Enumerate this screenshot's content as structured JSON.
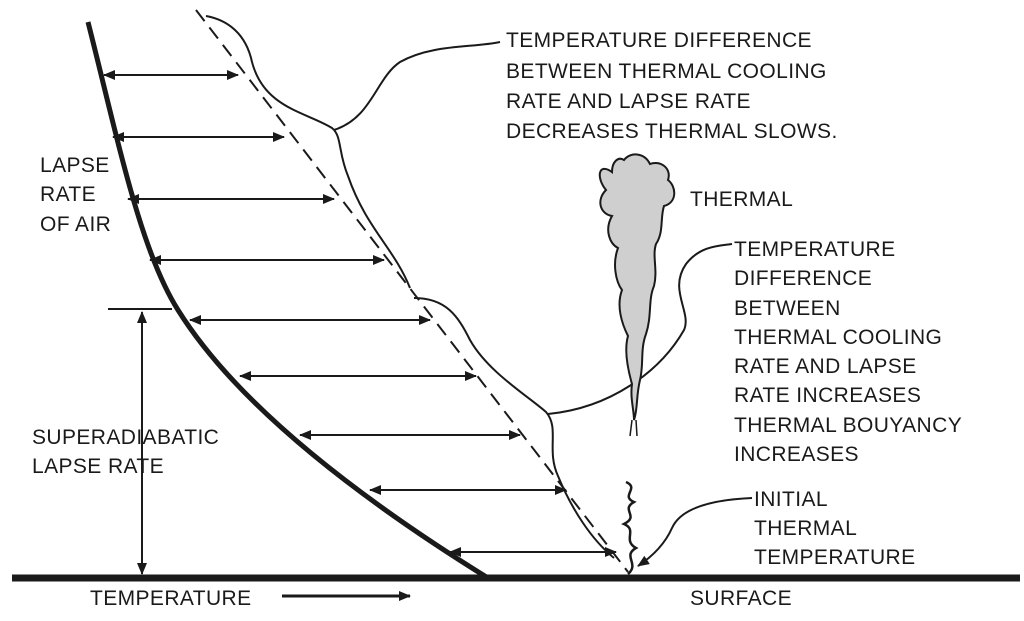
{
  "labels": {
    "top_note": [
      "TEMPERATURE DIFFERENCE",
      "BETWEEN THERMAL COOLING",
      "RATE AND LAPSE RATE",
      "DECREASES THERMAL SLOWS."
    ],
    "thermal": "THERMAL",
    "lapse_rate_of_air": [
      "LAPSE",
      "RATE",
      "OF AIR"
    ],
    "middle_note": [
      "TEMPERATURE",
      "DIFFERENCE",
      "BETWEEN",
      "THERMAL COOLING",
      "RATE AND LAPSE",
      "RATE INCREASES",
      "THERMAL BOUYANCY",
      "INCREASES"
    ],
    "superadiabatic": [
      "SUPERADIABATIC",
      "LAPSE RATE"
    ],
    "initial_thermal": [
      "INITIAL",
      "THERMAL",
      "TEMPERATURE"
    ],
    "temperature_axis": "TEMPERATURE",
    "surface": "SURFACE"
  }
}
